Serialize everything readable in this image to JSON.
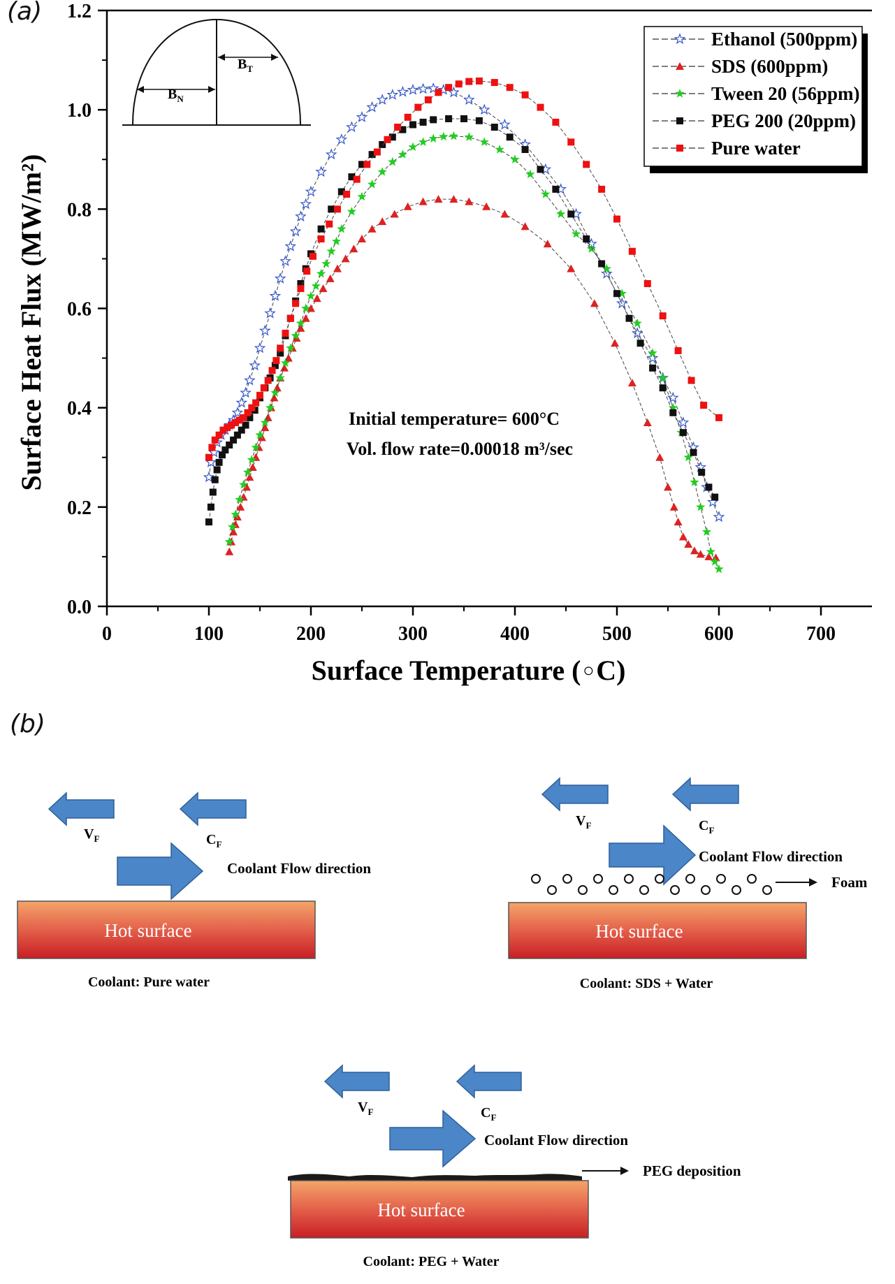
{
  "panel_a_label": "(a)",
  "panel_b_label": "(b)",
  "chart_data": {
    "type": "scatter",
    "xlabel": "Surface Temperature (°C)",
    "xlabel_parts": [
      "Surface Temperature (",
      "◦",
      "C)"
    ],
    "ylabel": "Surface Heat Flux (MW/m²)",
    "xlim": [
      0,
      750
    ],
    "ylim": [
      0,
      1.2
    ],
    "xticks": [
      0,
      100,
      200,
      300,
      400,
      500,
      600,
      700
    ],
    "yticks": [
      0.0,
      0.2,
      0.4,
      0.6,
      0.8,
      1.0,
      1.2
    ],
    "ytick_labels": [
      "0.0",
      "0.2",
      "0.4",
      "0.6",
      "0.8",
      "1.0",
      "1.2"
    ],
    "grid": false,
    "legend_position": "top-right",
    "annotations": [
      "Initial temperature= 600°C",
      "Vol. flow rate=0.00018 m³/sec"
    ],
    "inset_labels": {
      "bt_base": "B",
      "bt_sub": "T",
      "bn_base": "B",
      "bn_sub": "N"
    },
    "series": [
      {
        "name": "Ethanol (500ppm)",
        "color": "#3355cc",
        "marker": "star-open",
        "points": [
          [
            100,
            0.26
          ],
          [
            102,
            0.29
          ],
          [
            105,
            0.31
          ],
          [
            108,
            0.33
          ],
          [
            112,
            0.345
          ],
          [
            116,
            0.355
          ],
          [
            120,
            0.365
          ],
          [
            124,
            0.375
          ],
          [
            128,
            0.39
          ],
          [
            132,
            0.41
          ],
          [
            136,
            0.43
          ],
          [
            140,
            0.455
          ],
          [
            145,
            0.485
          ],
          [
            150,
            0.52
          ],
          [
            155,
            0.555
          ],
          [
            160,
            0.59
          ],
          [
            165,
            0.625
          ],
          [
            170,
            0.66
          ],
          [
            175,
            0.695
          ],
          [
            180,
            0.725
          ],
          [
            185,
            0.755
          ],
          [
            190,
            0.785
          ],
          [
            195,
            0.81
          ],
          [
            200,
            0.835
          ],
          [
            210,
            0.875
          ],
          [
            220,
            0.91
          ],
          [
            230,
            0.94
          ],
          [
            240,
            0.965
          ],
          [
            250,
            0.985
          ],
          [
            260,
            1.005
          ],
          [
            270,
            1.02
          ],
          [
            280,
            1.03
          ],
          [
            290,
            1.036
          ],
          [
            300,
            1.04
          ],
          [
            310,
            1.042
          ],
          [
            320,
            1.043
          ],
          [
            330,
            1.04
          ],
          [
            340,
            1.035
          ],
          [
            355,
            1.02
          ],
          [
            370,
            1.0
          ],
          [
            390,
            0.97
          ],
          [
            410,
            0.93
          ],
          [
            430,
            0.88
          ],
          [
            445,
            0.84
          ],
          [
            460,
            0.79
          ],
          [
            475,
            0.73
          ],
          [
            490,
            0.67
          ],
          [
            505,
            0.61
          ],
          [
            520,
            0.55
          ],
          [
            535,
            0.5
          ],
          [
            545,
            0.46
          ],
          [
            555,
            0.42
          ],
          [
            565,
            0.37
          ],
          [
            575,
            0.32
          ],
          [
            582,
            0.28
          ],
          [
            588,
            0.24
          ],
          [
            594,
            0.21
          ],
          [
            600,
            0.18
          ]
        ]
      },
      {
        "name": "SDS (600ppm)",
        "color": "#dd2222",
        "marker": "triangle",
        "points": [
          [
            120,
            0.11
          ],
          [
            122,
            0.13
          ],
          [
            124,
            0.15
          ],
          [
            126,
            0.165
          ],
          [
            128,
            0.18
          ],
          [
            131,
            0.2
          ],
          [
            134,
            0.22
          ],
          [
            137,
            0.24
          ],
          [
            140,
            0.26
          ],
          [
            143,
            0.28
          ],
          [
            146,
            0.3
          ],
          [
            149,
            0.32
          ],
          [
            152,
            0.34
          ],
          [
            155,
            0.36
          ],
          [
            158,
            0.38
          ],
          [
            161,
            0.4
          ],
          [
            164,
            0.42
          ],
          [
            167,
            0.44
          ],
          [
            170,
            0.46
          ],
          [
            174,
            0.48
          ],
          [
            178,
            0.5
          ],
          [
            182,
            0.52
          ],
          [
            186,
            0.54
          ],
          [
            190,
            0.56
          ],
          [
            195,
            0.58
          ],
          [
            200,
            0.6
          ],
          [
            206,
            0.62
          ],
          [
            212,
            0.64
          ],
          [
            219,
            0.66
          ],
          [
            226,
            0.68
          ],
          [
            234,
            0.7
          ],
          [
            242,
            0.72
          ],
          [
            250,
            0.74
          ],
          [
            260,
            0.76
          ],
          [
            270,
            0.775
          ],
          [
            282,
            0.79
          ],
          [
            295,
            0.805
          ],
          [
            310,
            0.815
          ],
          [
            325,
            0.82
          ],
          [
            340,
            0.82
          ],
          [
            355,
            0.815
          ],
          [
            372,
            0.805
          ],
          [
            390,
            0.79
          ],
          [
            410,
            0.765
          ],
          [
            432,
            0.73
          ],
          [
            455,
            0.68
          ],
          [
            478,
            0.61
          ],
          [
            498,
            0.53
          ],
          [
            515,
            0.45
          ],
          [
            530,
            0.37
          ],
          [
            542,
            0.3
          ],
          [
            550,
            0.24
          ],
          [
            556,
            0.2
          ],
          [
            560,
            0.17
          ],
          [
            565,
            0.14
          ],
          [
            570,
            0.125
          ],
          [
            576,
            0.112
          ],
          [
            582,
            0.105
          ],
          [
            590,
            0.1
          ],
          [
            597,
            0.098
          ]
        ]
      },
      {
        "name": "Tween 20 (56ppm)",
        "color": "#22cc22",
        "marker": "star",
        "points": [
          [
            120,
            0.13
          ],
          [
            123,
            0.16
          ],
          [
            126,
            0.185
          ],
          [
            130,
            0.215
          ],
          [
            134,
            0.245
          ],
          [
            138,
            0.27
          ],
          [
            142,
            0.295
          ],
          [
            146,
            0.32
          ],
          [
            150,
            0.345
          ],
          [
            155,
            0.37
          ],
          [
            160,
            0.4
          ],
          [
            165,
            0.43
          ],
          [
            170,
            0.46
          ],
          [
            175,
            0.49
          ],
          [
            180,
            0.52
          ],
          [
            185,
            0.545
          ],
          [
            190,
            0.57
          ],
          [
            195,
            0.6
          ],
          [
            200,
            0.625
          ],
          [
            205,
            0.645
          ],
          [
            210,
            0.67
          ],
          [
            215,
            0.69
          ],
          [
            220,
            0.715
          ],
          [
            225,
            0.735
          ],
          [
            230,
            0.76
          ],
          [
            240,
            0.795
          ],
          [
            250,
            0.825
          ],
          [
            260,
            0.85
          ],
          [
            270,
            0.875
          ],
          [
            280,
            0.895
          ],
          [
            290,
            0.91
          ],
          [
            300,
            0.925
          ],
          [
            310,
            0.935
          ],
          [
            320,
            0.942
          ],
          [
            330,
            0.946
          ],
          [
            340,
            0.947
          ],
          [
            355,
            0.945
          ],
          [
            370,
            0.935
          ],
          [
            385,
            0.92
          ],
          [
            400,
            0.9
          ],
          [
            415,
            0.87
          ],
          [
            430,
            0.83
          ],
          [
            445,
            0.79
          ],
          [
            460,
            0.75
          ],
          [
            475,
            0.72
          ],
          [
            490,
            0.68
          ],
          [
            505,
            0.63
          ],
          [
            520,
            0.57
          ],
          [
            535,
            0.51
          ],
          [
            545,
            0.46
          ],
          [
            555,
            0.4
          ],
          [
            563,
            0.35
          ],
          [
            570,
            0.3
          ],
          [
            576,
            0.25
          ],
          [
            582,
            0.2
          ],
          [
            588,
            0.15
          ],
          [
            592,
            0.11
          ],
          [
            596,
            0.09
          ],
          [
            600,
            0.075
          ]
        ]
      },
      {
        "name": "PEG 200 (20ppm)",
        "color": "#111111",
        "marker": "square",
        "points": [
          [
            100,
            0.17
          ],
          [
            102,
            0.2
          ],
          [
            104,
            0.23
          ],
          [
            106,
            0.255
          ],
          [
            108,
            0.275
          ],
          [
            110,
            0.29
          ],
          [
            113,
            0.305
          ],
          [
            116,
            0.315
          ],
          [
            120,
            0.325
          ],
          [
            124,
            0.335
          ],
          [
            128,
            0.345
          ],
          [
            132,
            0.355
          ],
          [
            136,
            0.365
          ],
          [
            140,
            0.38
          ],
          [
            145,
            0.395
          ],
          [
            150,
            0.42
          ],
          [
            155,
            0.44
          ],
          [
            160,
            0.46
          ],
          [
            165,
            0.485
          ],
          [
            170,
            0.51
          ],
          [
            175,
            0.545
          ],
          [
            180,
            0.58
          ],
          [
            185,
            0.615
          ],
          [
            190,
            0.65
          ],
          [
            195,
            0.68
          ],
          [
            200,
            0.71
          ],
          [
            210,
            0.76
          ],
          [
            220,
            0.8
          ],
          [
            230,
            0.835
          ],
          [
            240,
            0.865
          ],
          [
            250,
            0.89
          ],
          [
            260,
            0.91
          ],
          [
            270,
            0.93
          ],
          [
            280,
            0.945
          ],
          [
            290,
            0.96
          ],
          [
            300,
            0.97
          ],
          [
            310,
            0.975
          ],
          [
            320,
            0.98
          ],
          [
            335,
            0.982
          ],
          [
            350,
            0.982
          ],
          [
            365,
            0.978
          ],
          [
            380,
            0.965
          ],
          [
            395,
            0.945
          ],
          [
            410,
            0.92
          ],
          [
            425,
            0.88
          ],
          [
            440,
            0.84
          ],
          [
            455,
            0.79
          ],
          [
            470,
            0.74
          ],
          [
            485,
            0.69
          ],
          [
            500,
            0.63
          ],
          [
            512,
            0.58
          ],
          [
            523,
            0.53
          ],
          [
            535,
            0.48
          ],
          [
            545,
            0.44
          ],
          [
            555,
            0.39
          ],
          [
            565,
            0.35
          ],
          [
            575,
            0.31
          ],
          [
            583,
            0.27
          ],
          [
            590,
            0.24
          ],
          [
            596,
            0.22
          ]
        ]
      },
      {
        "name": "Pure water",
        "color": "#ee1111",
        "marker": "square",
        "points": [
          [
            100,
            0.3
          ],
          [
            103,
            0.32
          ],
          [
            106,
            0.335
          ],
          [
            110,
            0.345
          ],
          [
            114,
            0.355
          ],
          [
            118,
            0.36
          ],
          [
            122,
            0.365
          ],
          [
            126,
            0.37
          ],
          [
            130,
            0.375
          ],
          [
            134,
            0.38
          ],
          [
            138,
            0.39
          ],
          [
            142,
            0.4
          ],
          [
            146,
            0.41
          ],
          [
            150,
            0.425
          ],
          [
            154,
            0.44
          ],
          [
            158,
            0.455
          ],
          [
            162,
            0.475
          ],
          [
            166,
            0.495
          ],
          [
            170,
            0.52
          ],
          [
            175,
            0.55
          ],
          [
            180,
            0.58
          ],
          [
            185,
            0.61
          ],
          [
            190,
            0.64
          ],
          [
            196,
            0.675
          ],
          [
            202,
            0.705
          ],
          [
            210,
            0.74
          ],
          [
            218,
            0.77
          ],
          [
            226,
            0.8
          ],
          [
            235,
            0.83
          ],
          [
            245,
            0.86
          ],
          [
            255,
            0.89
          ],
          [
            265,
            0.915
          ],
          [
            275,
            0.94
          ],
          [
            285,
            0.965
          ],
          [
            295,
            0.985
          ],
          [
            305,
            1.005
          ],
          [
            315,
            1.02
          ],
          [
            325,
            1.035
          ],
          [
            335,
            1.045
          ],
          [
            345,
            1.052
          ],
          [
            355,
            1.057
          ],
          [
            365,
            1.058
          ],
          [
            380,
            1.055
          ],
          [
            395,
            1.045
          ],
          [
            410,
            1.03
          ],
          [
            425,
            1.005
          ],
          [
            440,
            0.975
          ],
          [
            455,
            0.935
          ],
          [
            470,
            0.89
          ],
          [
            485,
            0.84
          ],
          [
            500,
            0.78
          ],
          [
            515,
            0.715
          ],
          [
            530,
            0.65
          ],
          [
            545,
            0.585
          ],
          [
            560,
            0.515
          ],
          [
            573,
            0.455
          ],
          [
            585,
            0.405
          ],
          [
            600,
            0.38
          ]
        ]
      }
    ]
  },
  "diagram": {
    "hot_surface_label": "Hot surface",
    "vf_base": "V",
    "vf_sub": "F",
    "cf_base": "C",
    "cf_sub": "F",
    "flow_label": "Coolant Flow direction",
    "foam_label": "Foam",
    "peg_deposition_label": "PEG deposition",
    "captions": [
      "Coolant: Pure water",
      "Coolant: SDS + Water",
      "Coolant: PEG + Water"
    ],
    "colors": {
      "arrow_fill": "#4a86c8",
      "arrow_stroke": "#2e5f99",
      "surface_top": "#f4a56a",
      "surface_bottom": "#c81e24"
    }
  }
}
